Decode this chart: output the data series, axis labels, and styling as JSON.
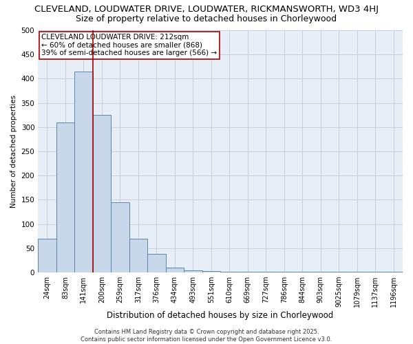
{
  "title": "CLEVELAND, LOUDWATER DRIVE, LOUDWATER, RICKMANSWORTH, WD3 4HJ",
  "subtitle": "Size of property relative to detached houses in Chorleywood",
  "xlabel": "Distribution of detached houses by size in Chorleywood",
  "ylabel": "Number of detached properties",
  "bar_labels": [
    "24sqm",
    "83sqm",
    "141sqm",
    "200sqm",
    "259sqm",
    "317sqm",
    "376sqm",
    "434sqm",
    "493sqm",
    "551sqm",
    "610sqm",
    "669sqm",
    "727sqm",
    "786sqm",
    "844sqm",
    "903sqm",
    "9025sqm",
    "1079sqm",
    "1137sqm",
    "1196sqm"
  ],
  "bar_values": [
    70,
    310,
    415,
    325,
    145,
    70,
    38,
    10,
    5,
    3,
    2,
    1,
    1,
    1,
    1,
    1,
    1,
    1,
    1,
    1
  ],
  "vline_index": 2,
  "vline_color": "#aa0000",
  "bar_fill_color": "#c8d8ea",
  "bar_edge_color": "#5588aa",
  "annotation_text": "CLEVELAND LOUDWATER DRIVE: 212sqm\n← 60% of detached houses are smaller (868)\n39% of semi-detached houses are larger (566) →",
  "annotation_box_facecolor": "#ffffff",
  "annotation_box_edgecolor": "#aa0000",
  "ylim": [
    0,
    500
  ],
  "yticks": [
    0,
    50,
    100,
    150,
    200,
    250,
    300,
    350,
    400,
    450,
    500
  ],
  "bg_color": "#e8eef5",
  "grid_color": "#c0ccd8",
  "footer_text": "Contains HM Land Registry data © Crown copyright and database right 2025.\nContains public sector information licensed under the Open Government Licence v3.0.",
  "title_fontsize": 9.5,
  "subtitle_fontsize": 9,
  "tick_fontsize": 7,
  "ylabel_fontsize": 7.5,
  "xlabel_fontsize": 8.5,
  "annot_fontsize": 7.5,
  "footer_fontsize": 6
}
